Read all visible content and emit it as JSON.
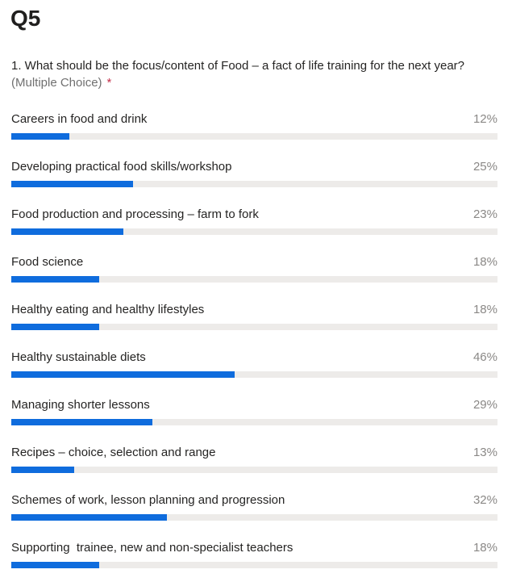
{
  "heading": "Q5",
  "question": {
    "text": "1. What should be the focus/content of Food – a fact of life training for the next year?",
    "type_label": "(Multiple Choice)",
    "required_marker": "*"
  },
  "colors": {
    "bar_fill": "#0f6cdd",
    "bar_track": "#edebe9",
    "required": "#c4314b"
  },
  "chart_data": {
    "type": "bar",
    "orientation": "horizontal",
    "xlim": [
      0,
      100
    ],
    "categories": [
      "Careers in food and drink",
      "Developing practical food skills/workshop",
      "Food production and processing – farm to fork",
      "Food science",
      "Healthy eating and healthy lifestyles",
      "Healthy sustainable diets",
      "Managing shorter lessons",
      "Recipes – choice, selection and range",
      "Schemes of work, lesson planning and progression",
      "Supporting  trainee, new and non-specialist teachers"
    ],
    "values": [
      12,
      25,
      23,
      18,
      18,
      46,
      29,
      13,
      32,
      18
    ],
    "value_labels": [
      "12%",
      "25%",
      "23%",
      "18%",
      "18%",
      "46%",
      "29%",
      "13%",
      "32%",
      "18%"
    ]
  }
}
